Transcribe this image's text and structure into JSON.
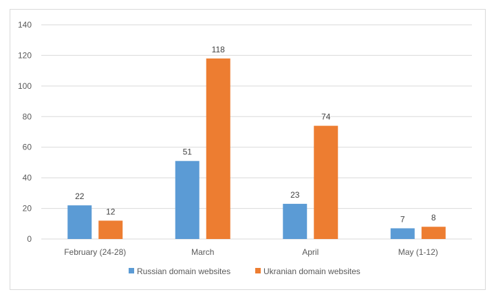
{
  "chart_data": {
    "type": "bar",
    "categories": [
      "February (24-28)",
      "March",
      "April",
      "May (1-12)"
    ],
    "series": [
      {
        "name": "Russian domain websites",
        "values": [
          22,
          51,
          23,
          7
        ],
        "color": "#5b9bd5"
      },
      {
        "name": "Ukranian domain websites",
        "values": [
          12,
          118,
          74,
          8
        ],
        "color": "#ed7d31"
      }
    ],
    "ylim": [
      0,
      140
    ],
    "yticks": [
      0,
      20,
      40,
      60,
      80,
      100,
      120,
      140
    ],
    "grid": true,
    "legend": "bottom"
  }
}
